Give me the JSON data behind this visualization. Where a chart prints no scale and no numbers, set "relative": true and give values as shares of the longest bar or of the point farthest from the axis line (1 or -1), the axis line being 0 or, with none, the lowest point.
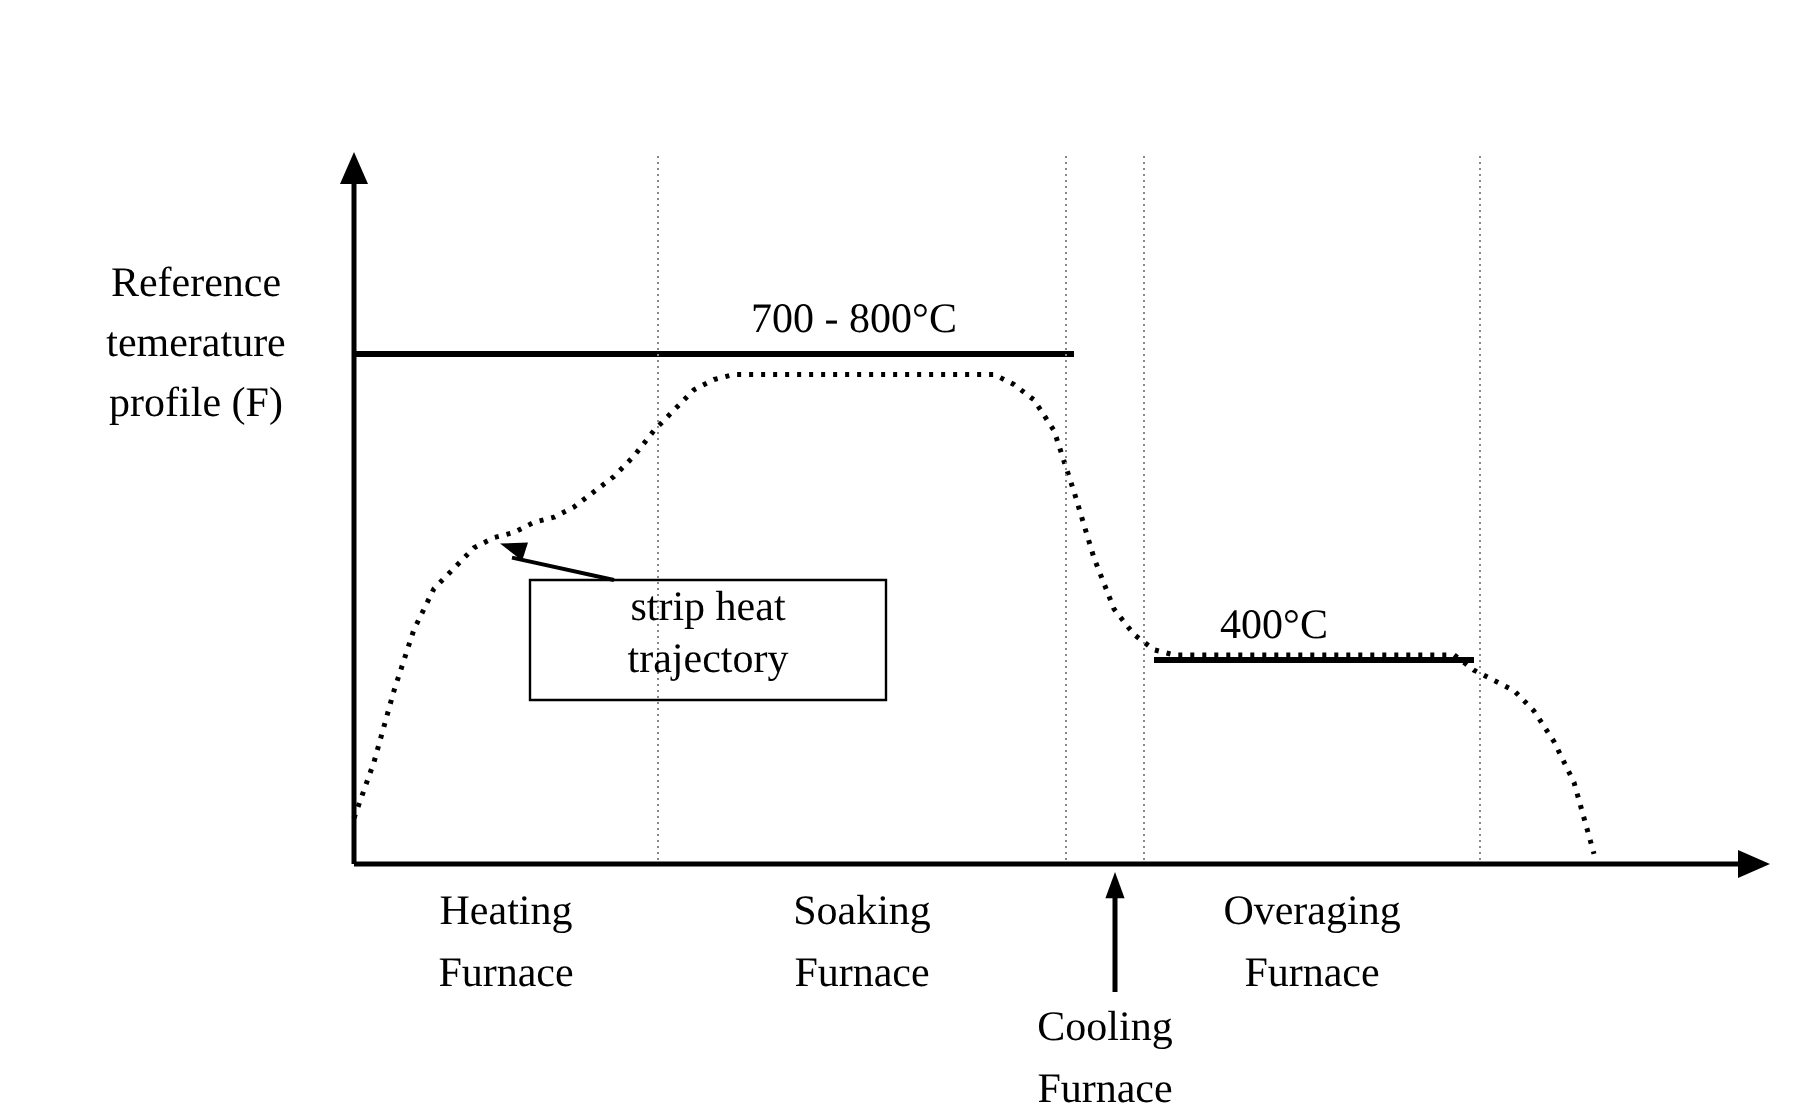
{
  "chart_data": {
    "type": "line",
    "relative": true,
    "ylabel": "Reference temerature profile (F)",
    "legend": false,
    "marker": "none",
    "annotations": [
      "Heating Furnace",
      "Soaking Furnace",
      "Cooling Furnace",
      "Overaging Furnace"
    ],
    "categories": [
      null,
      null,
      null,
      null,
      null,
      null,
      null,
      null,
      null,
      null,
      null,
      null,
      null,
      null,
      null,
      null,
      null,
      null,
      null,
      null,
      null,
      null,
      null,
      null,
      null,
      null,
      null,
      null,
      null,
      null,
      null,
      null,
      null,
      null,
      null,
      null,
      null,
      null,
      null,
      null,
      null,
      null,
      null,
      null,
      null,
      null,
      null,
      null,
      null,
      null,
      null,
      null,
      null,
      null,
      null,
      null,
      null,
      null,
      null,
      null,
      null,
      null,
      null,
      null,
      null,
      null,
      null,
      null,
      null,
      null,
      null
    ],
    "series": [
      {
        "name": "700 - 800°C",
        "color": "#000000",
        "line_style": "solid",
        "values": [
          1,
          1,
          1,
          1,
          1,
          1,
          1,
          1,
          1,
          1,
          1,
          1,
          1,
          1,
          1,
          1,
          1,
          1,
          1,
          1,
          1,
          1,
          1,
          1,
          1,
          1,
          1,
          1,
          1,
          1,
          1,
          1,
          1,
          1,
          1,
          1,
          1,
          null,
          null,
          null,
          null,
          null,
          null,
          null,
          null,
          null,
          null,
          null,
          null,
          null,
          null,
          null,
          null,
          null,
          null,
          null,
          null,
          null,
          null,
          null,
          null,
          null,
          null,
          null,
          null,
          null,
          null,
          null,
          null,
          null,
          null
        ]
      },
      {
        "name": "400°C",
        "color": "#000000",
        "line_style": "solid",
        "values": [
          null,
          null,
          null,
          null,
          null,
          null,
          null,
          null,
          null,
          null,
          null,
          null,
          null,
          null,
          null,
          null,
          null,
          null,
          null,
          null,
          null,
          null,
          null,
          null,
          null,
          null,
          null,
          null,
          null,
          null,
          null,
          null,
          null,
          null,
          null,
          null,
          null,
          null,
          null,
          null,
          0.4,
          0.4,
          0.4,
          0.4,
          0.4,
          0.4,
          0.4,
          0.4,
          0.4,
          0.4,
          0.4,
          0.4,
          0.4,
          0.4,
          0.4,
          0.4,
          0.4,
          null,
          null,
          null,
          null,
          null,
          null,
          null,
          null,
          null,
          null,
          null,
          null,
          null,
          null
        ]
      },
      {
        "name": "strip heat trajectory",
        "color": "#000000",
        "line_style": "dotted",
        "values": [
          0.09,
          0.2,
          0.34,
          0.46,
          0.54,
          0.58,
          0.62,
          0.64,
          0.65,
          0.67,
          0.68,
          0.7,
          0.73,
          0.76,
          0.8,
          0.85,
          0.89,
          0.93,
          0.95,
          0.96,
          0.96,
          0.96,
          0.96,
          0.96,
          0.96,
          0.96,
          0.96,
          0.96,
          0.96,
          0.96,
          0.96,
          0.96,
          0.96,
          0.94,
          0.91,
          0.85,
          0.73,
          0.6,
          0.5,
          0.45,
          0.42,
          0.41,
          0.41,
          0.41,
          0.41,
          0.41,
          0.41,
          0.41,
          0.41,
          0.41,
          0.41,
          0.41,
          0.41,
          0.41,
          0.41,
          0.41,
          0.38,
          0.36,
          0.34,
          0.3,
          0.24,
          0.16,
          0.02,
          null,
          null,
          null,
          null,
          null,
          null,
          null,
          null
        ]
      }
    ]
  }
}
